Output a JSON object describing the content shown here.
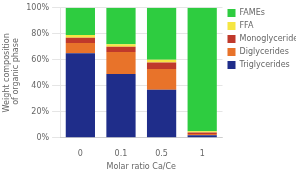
{
  "chart_data": {
    "type": "bar",
    "stacked": true,
    "categories": [
      "0",
      "0.1",
      "0.5",
      "1"
    ],
    "series": [
      {
        "name": "Triglycerides",
        "color": "#1F2D8A",
        "values": [
          65,
          49,
          37,
          2
        ]
      },
      {
        "name": "Diglycerides",
        "color": "#E8732A",
        "values": [
          8,
          17,
          16,
          1
        ]
      },
      {
        "name": "Monoglycerides",
        "color": "#C0392B",
        "values": [
          4,
          4,
          5,
          1
        ]
      },
      {
        "name": "FFA",
        "color": "#F5E642",
        "values": [
          2,
          2,
          2,
          1
        ]
      },
      {
        "name": "FAMEs",
        "color": "#2ECC40",
        "values": [
          21,
          28,
          40,
          95
        ]
      }
    ],
    "xlabel": "Molar ratio Ca/Ce",
    "ylabel": "Weight composition\n of organic phase",
    "ylim": [
      0,
      100
    ],
    "yticks": [
      {
        "value": 0,
        "label": "0%"
      },
      {
        "value": 20,
        "label": "20%"
      },
      {
        "value": 40,
        "label": "40%"
      },
      {
        "value": 60,
        "label": "60%"
      },
      {
        "value": 80,
        "label": "80%"
      },
      {
        "value": 100,
        "label": "100%"
      }
    ],
    "grid": true,
    "legend": "right"
  }
}
